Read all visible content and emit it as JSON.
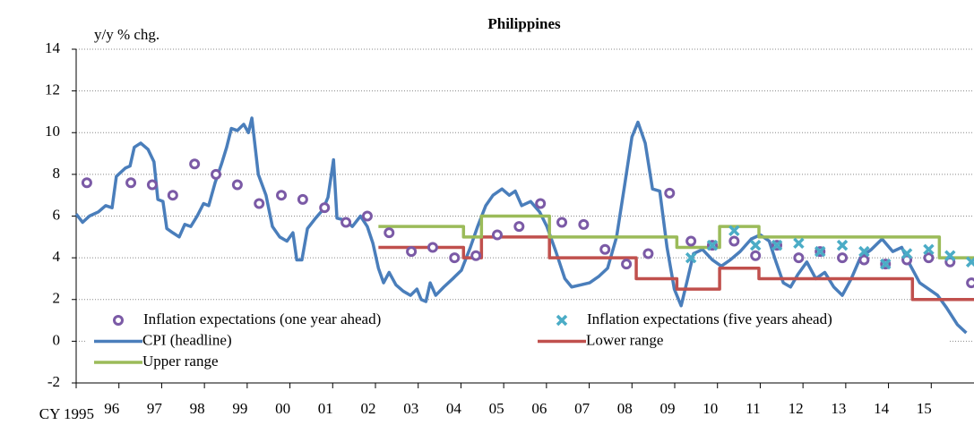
{
  "chart_data": {
    "type": "line",
    "title": "Philippines",
    "y_label": "y/y % chg.",
    "xlim": [
      1995,
      2016
    ],
    "ylim": [
      -2,
      14
    ],
    "yticks": [
      -2,
      0,
      2,
      4,
      6,
      8,
      10,
      12,
      14
    ],
    "xticks": [
      {
        "value": 1995,
        "label": "CY 1995"
      },
      {
        "value": 1996,
        "label": "96"
      },
      {
        "value": 1997,
        "label": "97"
      },
      {
        "value": 1998,
        "label": "98"
      },
      {
        "value": 1999,
        "label": "99"
      },
      {
        "value": 2000,
        "label": "00"
      },
      {
        "value": 2001,
        "label": "01"
      },
      {
        "value": 2002,
        "label": "02"
      },
      {
        "value": 2003,
        "label": "03"
      },
      {
        "value": 2004,
        "label": "04"
      },
      {
        "value": 2005,
        "label": "05"
      },
      {
        "value": 2006,
        "label": "06"
      },
      {
        "value": 2007,
        "label": "07"
      },
      {
        "value": 2008,
        "label": "08"
      },
      {
        "value": 2009,
        "label": "09"
      },
      {
        "value": 2010,
        "label": "10"
      },
      {
        "value": 2011,
        "label": "11"
      },
      {
        "value": 2012,
        "label": "12"
      },
      {
        "value": 2013,
        "label": "13"
      },
      {
        "value": 2014,
        "label": "14"
      },
      {
        "value": 2015,
        "label": "15"
      }
    ],
    "grid": true,
    "legend_position": "lower left",
    "series": [
      {
        "name": "Inflation expectations (one year ahead)",
        "color": "#7b5aa6",
        "marker": "circle",
        "x": [
          1995.25,
          1996.28,
          1996.78,
          1997.26,
          1997.77,
          1998.27,
          1998.77,
          1999.28,
          1999.8,
          2000.3,
          2000.81,
          2001.31,
          2001.81,
          2002.32,
          2002.84,
          2003.34,
          2003.85,
          2004.35,
          2004.85,
          2005.36,
          2005.86,
          2006.36,
          2006.87,
          2007.37,
          2007.87,
          2008.38,
          2008.88,
          2009.38,
          2009.88,
          2010.39,
          2010.89,
          2011.39,
          2011.9,
          2012.4,
          2012.92,
          2013.43,
          2013.93,
          2014.43,
          2014.94,
          2015.44,
          2015.94
        ],
        "values": [
          7.6,
          7.6,
          7.5,
          7.0,
          8.5,
          8.0,
          7.5,
          6.6,
          7.0,
          6.8,
          6.4,
          5.7,
          6.0,
          5.2,
          4.3,
          4.5,
          4.0,
          4.1,
          5.1,
          5.5,
          6.6,
          5.7,
          5.6,
          4.4,
          3.7,
          4.2,
          7.1,
          4.8,
          4.6,
          4.8,
          4.1,
          4.6,
          4.0,
          4.3,
          4.0,
          3.9,
          3.7,
          3.9,
          4.0,
          3.8,
          2.8
        ]
      },
      {
        "name": "Inflation expectations (five years ahead)",
        "color": "#4bacc6",
        "marker": "x",
        "x": [
          2009.38,
          2009.88,
          2010.39,
          2010.89,
          2011.39,
          2011.9,
          2012.4,
          2012.92,
          2013.43,
          2013.93,
          2014.43,
          2014.94,
          2015.44,
          2015.94
        ],
        "values": [
          4.0,
          4.6,
          5.3,
          4.6,
          4.6,
          4.7,
          4.3,
          4.6,
          4.3,
          3.7,
          4.2,
          4.4,
          4.1,
          3.8
        ]
      },
      {
        "name": "CPI (headline)",
        "color": "#4a7ebb",
        "x": [
          1995.0,
          1995.15,
          1995.31,
          1995.52,
          1995.69,
          1995.84,
          1995.94,
          1996.15,
          1996.26,
          1996.36,
          1996.51,
          1996.68,
          1996.82,
          1996.91,
          1997.03,
          1997.12,
          1997.26,
          1997.41,
          1997.54,
          1997.68,
          1997.83,
          1997.98,
          1998.1,
          1998.25,
          1998.4,
          1998.52,
          1998.63,
          1998.77,
          1998.92,
          1999.03,
          1999.11,
          1999.26,
          1999.44,
          1999.59,
          1999.76,
          1999.93,
          2000.07,
          2000.16,
          2000.28,
          2000.41,
          2000.6,
          2000.77,
          2000.89,
          2001.02,
          2001.1,
          2001.29,
          2001.46,
          2001.65,
          2001.81,
          2001.94,
          2002.07,
          2002.19,
          2002.32,
          2002.48,
          2002.65,
          2002.82,
          2002.97,
          2003.07,
          2003.18,
          2003.28,
          2003.41,
          2003.6,
          2003.81,
          2004.01,
          2004.22,
          2004.39,
          2004.58,
          2004.75,
          2004.96,
          2005.13,
          2005.27,
          2005.42,
          2005.63,
          2005.84,
          2006.01,
          2006.22,
          2006.43,
          2006.59,
          2006.8,
          2007.01,
          2007.22,
          2007.43,
          2007.64,
          2007.83,
          2008.0,
          2008.14,
          2008.31,
          2008.48,
          2008.65,
          2008.82,
          2008.99,
          2009.15,
          2009.28,
          2009.44,
          2009.65,
          2009.88,
          2010.09,
          2010.3,
          2010.53,
          2010.79,
          2011.0,
          2011.21,
          2011.37,
          2011.54,
          2011.71,
          2011.88,
          2012.09,
          2012.3,
          2012.51,
          2012.72,
          2012.92,
          2013.13,
          2013.34,
          2013.6,
          2013.85,
          2014.1,
          2014.31,
          2014.52,
          2014.73,
          2014.94,
          2015.15,
          2015.36,
          2015.61,
          2015.82
        ],
        "values": [
          6.1,
          5.7,
          6.0,
          6.2,
          6.5,
          6.4,
          7.9,
          8.3,
          8.4,
          9.3,
          9.5,
          9.2,
          8.6,
          6.8,
          6.7,
          5.4,
          5.2,
          5.0,
          5.6,
          5.5,
          6.0,
          6.6,
          6.5,
          7.6,
          8.5,
          9.3,
          10.2,
          10.1,
          10.4,
          10.0,
          10.7,
          8.0,
          7.0,
          5.5,
          5.0,
          4.8,
          5.2,
          3.9,
          3.9,
          5.4,
          5.9,
          6.3,
          6.9,
          8.7,
          5.9,
          5.8,
          5.5,
          6.0,
          5.5,
          4.7,
          3.5,
          2.8,
          3.3,
          2.7,
          2.4,
          2.2,
          2.5,
          2.0,
          1.9,
          2.8,
          2.2,
          2.6,
          3.0,
          3.4,
          4.5,
          5.5,
          6.5,
          7.0,
          7.3,
          7.0,
          7.2,
          6.5,
          6.7,
          6.2,
          5.5,
          4.3,
          3.0,
          2.6,
          2.7,
          2.8,
          3.1,
          3.5,
          5.0,
          7.5,
          9.8,
          10.5,
          9.5,
          7.3,
          7.2,
          4.5,
          2.5,
          1.7,
          2.8,
          4.2,
          4.4,
          3.9,
          3.6,
          3.9,
          4.3,
          4.9,
          5.1,
          4.8,
          3.8,
          2.8,
          2.6,
          3.2,
          3.8,
          3.0,
          3.3,
          2.6,
          2.2,
          3.0,
          4.0,
          4.4,
          4.9,
          4.3,
          4.5,
          3.6,
          2.8,
          2.5,
          2.2,
          1.6,
          0.8,
          0.4
        ]
      },
      {
        "name": "Lower range",
        "color": "#c0504d",
        "x": [
          2002.07,
          2004.06,
          2004.06,
          2004.48,
          2004.48,
          2006.07,
          2006.07,
          2008.1,
          2008.1,
          2009.05,
          2009.05,
          2010.05,
          2010.05,
          2010.97,
          2010.97,
          2014.56,
          2014.56,
          2016.0
        ],
        "values": [
          4.5,
          4.5,
          4.0,
          4.0,
          5.0,
          5.0,
          4.0,
          4.0,
          3.0,
          3.0,
          2.5,
          2.5,
          3.5,
          3.5,
          3.0,
          3.0,
          2.0,
          2.0
        ]
      },
      {
        "name": "Upper range",
        "color": "#9bbb59",
        "x": [
          2002.07,
          2004.06,
          2004.06,
          2004.48,
          2004.48,
          2006.07,
          2006.07,
          2009.05,
          2009.05,
          2010.05,
          2010.05,
          2010.97,
          2010.97,
          2015.19,
          2015.19,
          2016.0
        ],
        "values": [
          5.5,
          5.5,
          5.0,
          5.0,
          6.0,
          6.0,
          5.0,
          5.0,
          4.5,
          4.5,
          5.5,
          5.5,
          5.0,
          5.0,
          4.0,
          4.0
        ]
      }
    ]
  }
}
